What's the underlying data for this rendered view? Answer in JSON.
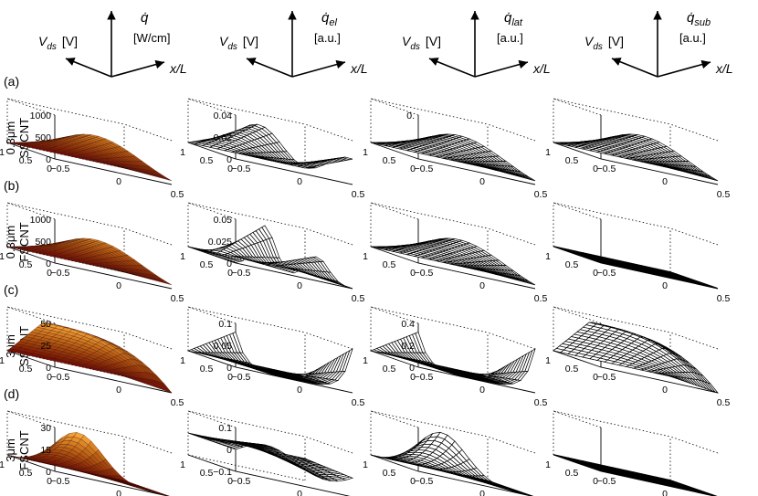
{
  "headers": [
    {
      "id": "total",
      "qdot": "q̇",
      "qsub": "",
      "unit1": "[W/cm]",
      "unit2": "",
      "vds": "V",
      "vds_sub": "ds",
      "vds_unit": "[V]",
      "xl": "x/L"
    },
    {
      "id": "el",
      "qdot": "q̇",
      "qsub": "el",
      "unit1": "[a.u.]",
      "unit2": "",
      "vds": "V",
      "vds_sub": "ds",
      "vds_unit": "[V]",
      "xl": "x/L"
    },
    {
      "id": "lat",
      "qdot": "q̇",
      "qsub": "lat",
      "unit1": "[a.u.]",
      "unit2": "",
      "vds": "V",
      "vds_sub": "ds",
      "vds_unit": "[V]",
      "xl": "x/L"
    },
    {
      "id": "sub",
      "qdot": "q̇",
      "qsub": "sub",
      "unit1": "[a.u.]",
      "unit2": "",
      "vds": "V",
      "vds_sub": "ds",
      "vds_unit": "[V]",
      "xl": "x/L"
    }
  ],
  "rows": [
    {
      "letter": "(a)",
      "label1": "0.3μm",
      "label2": "SSCNT"
    },
    {
      "letter": "(b)",
      "label1": "0.3μm",
      "label2": "FSCNT"
    },
    {
      "letter": "(c)",
      "label1": "3μm",
      "label2": "SSCNT"
    },
    {
      "letter": "(d)",
      "label1": "3μm",
      "label2": "FSCNT"
    }
  ],
  "axis_ticks": {
    "vds": [
      "1",
      "0.5",
      "0"
    ],
    "x": [
      "−0.5",
      "0",
      "0.5"
    ]
  },
  "chart_data": {
    "type": "surface-grid",
    "x_label": "x/L",
    "x_range": [
      -0.5,
      0.5
    ],
    "vds_label": "V_ds [V]",
    "vds_range": [
      0,
      1
    ],
    "panels": [
      [
        {
          "quantity": "q_dot total [W/cm]",
          "z_ticks": [
            "1000",
            "500",
            "0"
          ],
          "zmax": 1000,
          "shape": "dome",
          "peak": 950,
          "colored": true
        },
        {
          "quantity": "q_dot_el [a.u.]",
          "z_ticks": [
            "0.04",
            "0.02",
            "0"
          ],
          "zmax": 0.04,
          "shape": "wavy",
          "peak": 0.025,
          "colored": false
        },
        {
          "quantity": "q_dot_lat [a.u.]",
          "z_ticks": [
            "0.",
            "",
            ""
          ],
          "zmax": 1,
          "shape": "dome",
          "peak": 0.5,
          "colored": false
        },
        {
          "quantity": "q_dot_sub [a.u.]",
          "z_ticks": [],
          "zmax": 1,
          "shape": "dome",
          "peak": 0.45,
          "colored": false
        }
      ],
      [
        {
          "quantity": "q_dot total [W/cm]",
          "z_ticks": [
            "1000",
            "500",
            "0"
          ],
          "zmax": 1000,
          "shape": "dome",
          "peak": 950,
          "colored": true
        },
        {
          "quantity": "q_dot_el [a.u.]",
          "z_ticks": [
            "0.05",
            "0.025",
            "0"
          ],
          "zmax": 0.05,
          "shape": "twin",
          "peak": 0.05,
          "colored": false
        },
        {
          "quantity": "q_dot_lat [a.u.]",
          "z_ticks": [],
          "zmax": 1,
          "shape": "dome",
          "peak": 0.9,
          "colored": false
        },
        {
          "quantity": "q_dot_sub [a.u.]",
          "z_ticks": [],
          "zmax": 1,
          "shape": "flat",
          "peak": 0,
          "colored": false
        }
      ],
      [
        {
          "quantity": "q_dot total [W/cm]",
          "z_ticks": [
            "50",
            "25",
            "0"
          ],
          "zmax": 50,
          "shape": "plateau",
          "peak": 36,
          "colored": true
        },
        {
          "quantity": "q_dot_el [a.u.]",
          "z_ticks": [
            "0.1",
            "0.05",
            "0"
          ],
          "zmax": 0.1,
          "shape": "edges",
          "peak": 0.07,
          "colored": false
        },
        {
          "quantity": "q_dot_lat [a.u.]",
          "z_ticks": [
            "0.4",
            "0.2",
            "0"
          ],
          "zmax": 0.4,
          "shape": "edges",
          "peak": 0.4,
          "colored": false
        },
        {
          "quantity": "q_dot_sub [a.u.]",
          "z_ticks": [],
          "zmax": 1,
          "shape": "plateau",
          "peak": 0.8,
          "colored": false
        }
      ],
      [
        {
          "quantity": "q_dot total [W/cm]",
          "z_ticks": [
            "30",
            "15",
            "0"
          ],
          "zmax": 30,
          "shape": "peakback",
          "peak": 28,
          "colored": true
        },
        {
          "quantity": "q_dot_el [a.u.]",
          "z_ticks": [
            "0.1",
            "0",
            "−0.1"
          ],
          "zmax": 0.1,
          "shape": "neg",
          "peak": 0.05,
          "colored": false
        },
        {
          "quantity": "q_dot_lat [a.u.]",
          "z_ticks": [],
          "zmax": 1,
          "shape": "peakback",
          "peak": 0.9,
          "colored": false
        },
        {
          "quantity": "q_dot_sub [a.u.]",
          "z_ticks": [],
          "zmax": 1,
          "shape": "flat",
          "peak": 0,
          "colored": false
        }
      ]
    ]
  }
}
